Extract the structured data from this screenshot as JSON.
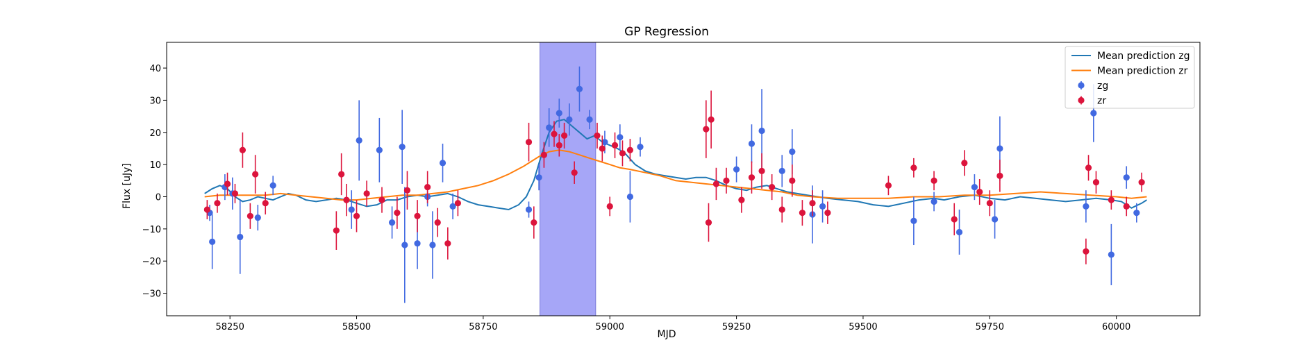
{
  "chart_data": {
    "type": "scatter",
    "title": "GP Regression",
    "xlabel": "MJD",
    "ylabel": "Flux [uJy]",
    "xlim": [
      58125,
      60165
    ],
    "ylim": [
      -37,
      48
    ],
    "xticks": [
      58250,
      58500,
      58750,
      59000,
      59250,
      59500,
      59750,
      60000
    ],
    "yticks": [
      -30,
      -20,
      -10,
      0,
      10,
      20,
      30,
      40
    ],
    "grid": false,
    "legend_position": "top-right",
    "highlight_band": {
      "x_range": [
        58862,
        58972
      ],
      "color": "#a6a6f7"
    },
    "series": [
      {
        "name": "Mean prediction zg",
        "kind": "line",
        "color": "#1f77b4",
        "x": [
          58200,
          58215,
          58230,
          58245,
          58260,
          58275,
          58290,
          58305,
          58320,
          58335,
          58350,
          58365,
          58380,
          58400,
          58420,
          58440,
          58460,
          58480,
          58500,
          58520,
          58540,
          58560,
          58580,
          58600,
          58620,
          58640,
          58660,
          58680,
          58700,
          58720,
          58740,
          58760,
          58780,
          58800,
          58820,
          58835,
          58850,
          58865,
          58880,
          58895,
          58910,
          58925,
          58940,
          58955,
          58970,
          58985,
          59000,
          59015,
          59030,
          59050,
          59070,
          59090,
          59110,
          59130,
          59150,
          59170,
          59190,
          59210,
          59230,
          59250,
          59270,
          59290,
          59310,
          59330,
          59350,
          59370,
          59390,
          59410,
          59430,
          59460,
          59490,
          59520,
          59550,
          59580,
          59610,
          59640,
          59660,
          59690,
          59720,
          59750,
          59780,
          59810,
          59840,
          59870,
          59900,
          59930,
          59960,
          59990,
          60010,
          60030,
          60050,
          60060
        ],
        "y": [
          1,
          2.5,
          3.5,
          2.5,
          0,
          -1.5,
          -1,
          0,
          -0.5,
          -1,
          0,
          1,
          0.5,
          -1,
          -1.5,
          -1,
          -0.5,
          -1,
          -2,
          -3,
          -2.5,
          -1,
          -1,
          0,
          0.5,
          0,
          0.5,
          1,
          0,
          -1.5,
          -2.5,
          -3,
          -3.5,
          -4,
          -2.5,
          0,
          5,
          13,
          20,
          23.5,
          24,
          22,
          20,
          18,
          19,
          17,
          16,
          15,
          13.5,
          10,
          8,
          7,
          6.5,
          6,
          5.5,
          6,
          6,
          5,
          3.5,
          2.5,
          2,
          3,
          3.5,
          2.5,
          1.5,
          1,
          0.5,
          0,
          -0.5,
          -1,
          -1.5,
          -2.5,
          -3,
          -2,
          -1,
          -0.5,
          -1,
          0,
          0.5,
          -0.5,
          -1,
          0,
          -0.5,
          -1,
          -1.5,
          -1,
          -0.5,
          -1,
          -1.5,
          -3.5,
          -2,
          -1
        ]
      },
      {
        "name": "Mean prediction zr",
        "kind": "line",
        "color": "#ff7f0e",
        "x": [
          58200,
          58230,
          58260,
          58290,
          58320,
          58350,
          58380,
          58410,
          58440,
          58470,
          58500,
          58530,
          58560,
          58590,
          58620,
          58650,
          58680,
          58710,
          58740,
          58770,
          58800,
          58830,
          58860,
          58880,
          58900,
          58920,
          58940,
          58960,
          58980,
          59000,
          59020,
          59040,
          59070,
          59100,
          59130,
          59160,
          59190,
          59220,
          59250,
          59280,
          59310,
          59340,
          59370,
          59400,
          59450,
          59500,
          59550,
          59600,
          59650,
          59700,
          59750,
          59800,
          59850,
          59900,
          59950,
          60000,
          60030,
          60060
        ],
        "y": [
          0,
          0.5,
          0.5,
          0.5,
          0.5,
          1,
          0.5,
          0,
          -0.5,
          -1,
          -1,
          -0.5,
          0,
          0.5,
          0.5,
          1,
          1.5,
          2.5,
          3.5,
          5,
          7,
          9.5,
          12.5,
          14,
          14.5,
          14,
          13,
          12,
          11,
          10,
          9,
          8.5,
          7.5,
          6.5,
          5,
          4.5,
          4,
          3.5,
          3,
          2.5,
          2,
          1.5,
          0.5,
          0,
          -0.5,
          -0.5,
          -0.5,
          0,
          0,
          0.5,
          0.5,
          1,
          1.5,
          1,
          0.5,
          0,
          -0.5,
          0
        ]
      },
      {
        "name": "zg",
        "kind": "errorbar",
        "color": "#4169e1",
        "x": [
          58210,
          58215,
          58240,
          58255,
          58270,
          58305,
          58335,
          58490,
          58505,
          58545,
          58570,
          58590,
          58595,
          58620,
          58640,
          58650,
          58670,
          58690,
          58840,
          58860,
          58880,
          58900,
          58920,
          58940,
          58960,
          58990,
          59020,
          59040,
          59060,
          59250,
          59280,
          59300,
          59340,
          59360,
          59400,
          59420,
          59600,
          59640,
          59690,
          59720,
          59760,
          59770,
          59940,
          59955,
          59990,
          60020,
          60040
        ],
        "y": [
          -5,
          -14,
          3,
          1,
          -12.5,
          -6.5,
          3.5,
          -4,
          17.5,
          14.5,
          -8,
          15.5,
          -15,
          -14.5,
          0,
          -15,
          10.5,
          -3,
          -4,
          6,
          21.5,
          26,
          24,
          33.5,
          24,
          17,
          18.5,
          0,
          15.5,
          8.5,
          16.5,
          20.5,
          8,
          14,
          -5.5,
          -3,
          -7.5,
          -1.5,
          -11,
          3,
          -7,
          15,
          -3,
          26,
          -18,
          6,
          -5
        ],
        "err": [
          2.5,
          8.5,
          4,
          5,
          11.5,
          4,
          3,
          6,
          12.5,
          10,
          5,
          11.5,
          18,
          8,
          3,
          10.5,
          6,
          4,
          2.5,
          4,
          6,
          4.5,
          5,
          7,
          3,
          3.5,
          4,
          8,
          3,
          4,
          6,
          13,
          5,
          7,
          9,
          5,
          7.5,
          3,
          7,
          4,
          6,
          10,
          5,
          9,
          9.5,
          3.5,
          3
        ]
      },
      {
        "name": "zr",
        "kind": "errorbar",
        "color": "#dc143c",
        "x": [
          58205,
          58225,
          58245,
          58260,
          58275,
          58290,
          58300,
          58320,
          58460,
          58470,
          58480,
          58500,
          58520,
          58550,
          58580,
          58600,
          58620,
          58640,
          58660,
          58680,
          58700,
          58840,
          58850,
          58870,
          58890,
          58900,
          58910,
          58930,
          58975,
          58985,
          59000,
          59010,
          59025,
          59040,
          59190,
          59195,
          59200,
          59210,
          59230,
          59260,
          59280,
          59300,
          59320,
          59340,
          59360,
          59380,
          59400,
          59430,
          59550,
          59600,
          59640,
          59680,
          59700,
          59730,
          59750,
          59770,
          59940,
          59945,
          59960,
          59990,
          60020,
          60050
        ],
        "y": [
          -4,
          -2,
          4,
          1,
          14.5,
          -6,
          7,
          -2,
          -10.5,
          7,
          -1,
          -6,
          1,
          -1,
          -5,
          2,
          -6,
          3,
          -8,
          -14.5,
          -2,
          17,
          -8,
          13,
          19.5,
          16,
          19,
          7.5,
          19,
          15,
          -3,
          16,
          13.5,
          14.5,
          21,
          -8,
          24,
          4,
          5,
          -1,
          6,
          8,
          3,
          -4,
          5,
          -5,
          -2,
          -5,
          3.5,
          9,
          5,
          -7,
          10.5,
          1.5,
          -2,
          6.5,
          -17,
          9,
          4.5,
          -1,
          -3,
          4.5
        ],
        "err": [
          3,
          3,
          3.5,
          3,
          5.5,
          4,
          6,
          3.5,
          6,
          6.5,
          5,
          5,
          4,
          4,
          5,
          6,
          5,
          5,
          4.5,
          5,
          4,
          6,
          5,
          4,
          4,
          3.5,
          4,
          3.5,
          4,
          4,
          3,
          4,
          4,
          3.5,
          9,
          6,
          9,
          5,
          4,
          4,
          5,
          5.5,
          4,
          4,
          5,
          4,
          4,
          3.5,
          3,
          3,
          3,
          5,
          4,
          4,
          4,
          5,
          4,
          4,
          3.5,
          3,
          3,
          3
        ]
      }
    ]
  }
}
